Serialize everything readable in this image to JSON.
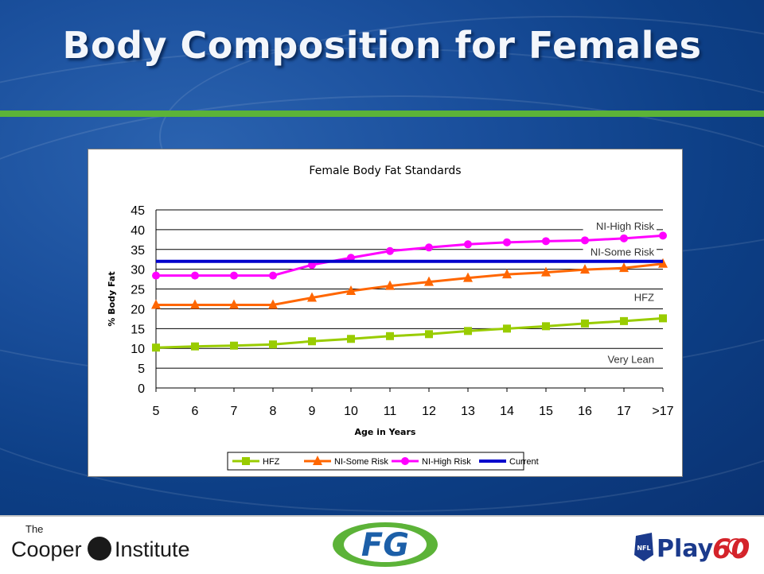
{
  "slide": {
    "title": "Body Composition for Females"
  },
  "footer": {
    "cooper": {
      "the": "The",
      "main": "Cooper",
      "institute": "Institute"
    },
    "fg": "FG",
    "nfl": "NFL",
    "play": "Play",
    "sixty": "60"
  },
  "colors": {
    "hfz": "#99cc00",
    "some_risk": "#ff6600",
    "high_risk": "#ff00ff",
    "current": "#0000cc",
    "title_rule": "#5cb338"
  },
  "chart_data": {
    "type": "line",
    "title": "Female Body Fat Standards",
    "xlabel": "Age in Years",
    "ylabel": "% Body Fat",
    "ylim": [
      0,
      45
    ],
    "yticks": [
      0,
      5,
      10,
      15,
      20,
      25,
      30,
      35,
      40,
      45
    ],
    "grid": "horizontal",
    "legend": "bottom",
    "categories": [
      "5",
      "6",
      "7",
      "8",
      "9",
      "10",
      "11",
      "12",
      "13",
      "14",
      "15",
      "16",
      "17",
      ">17"
    ],
    "series": [
      {
        "name": "HFZ",
        "marker": "square",
        "color": "#99cc00",
        "values": [
          10.2,
          10.5,
          10.7,
          11.0,
          11.8,
          12.4,
          13.1,
          13.6,
          14.4,
          15.0,
          15.6,
          16.3,
          16.9,
          17.6
        ]
      },
      {
        "name": "NI-Some Risk",
        "marker": "triangle",
        "color": "#ff6600",
        "values": [
          21.0,
          21.0,
          21.0,
          21.0,
          22.8,
          24.5,
          25.8,
          26.8,
          27.8,
          28.7,
          29.2,
          29.9,
          30.3,
          31.4
        ]
      },
      {
        "name": "NI-High Risk",
        "marker": "circle",
        "color": "#ff00ff",
        "values": [
          28.4,
          28.4,
          28.4,
          28.4,
          31.1,
          32.9,
          34.6,
          35.5,
          36.3,
          36.8,
          37.1,
          37.3,
          37.8,
          38.5
        ]
      },
      {
        "name": "Current",
        "marker": "none",
        "color": "#0000cc",
        "values": [
          32,
          32,
          32,
          32,
          32,
          32,
          32,
          32,
          32,
          32,
          32,
          32,
          32,
          32
        ]
      }
    ],
    "zone_labels": [
      "NI-High Risk",
      "NI-Some Risk",
      "HFZ",
      "Very Lean"
    ]
  }
}
